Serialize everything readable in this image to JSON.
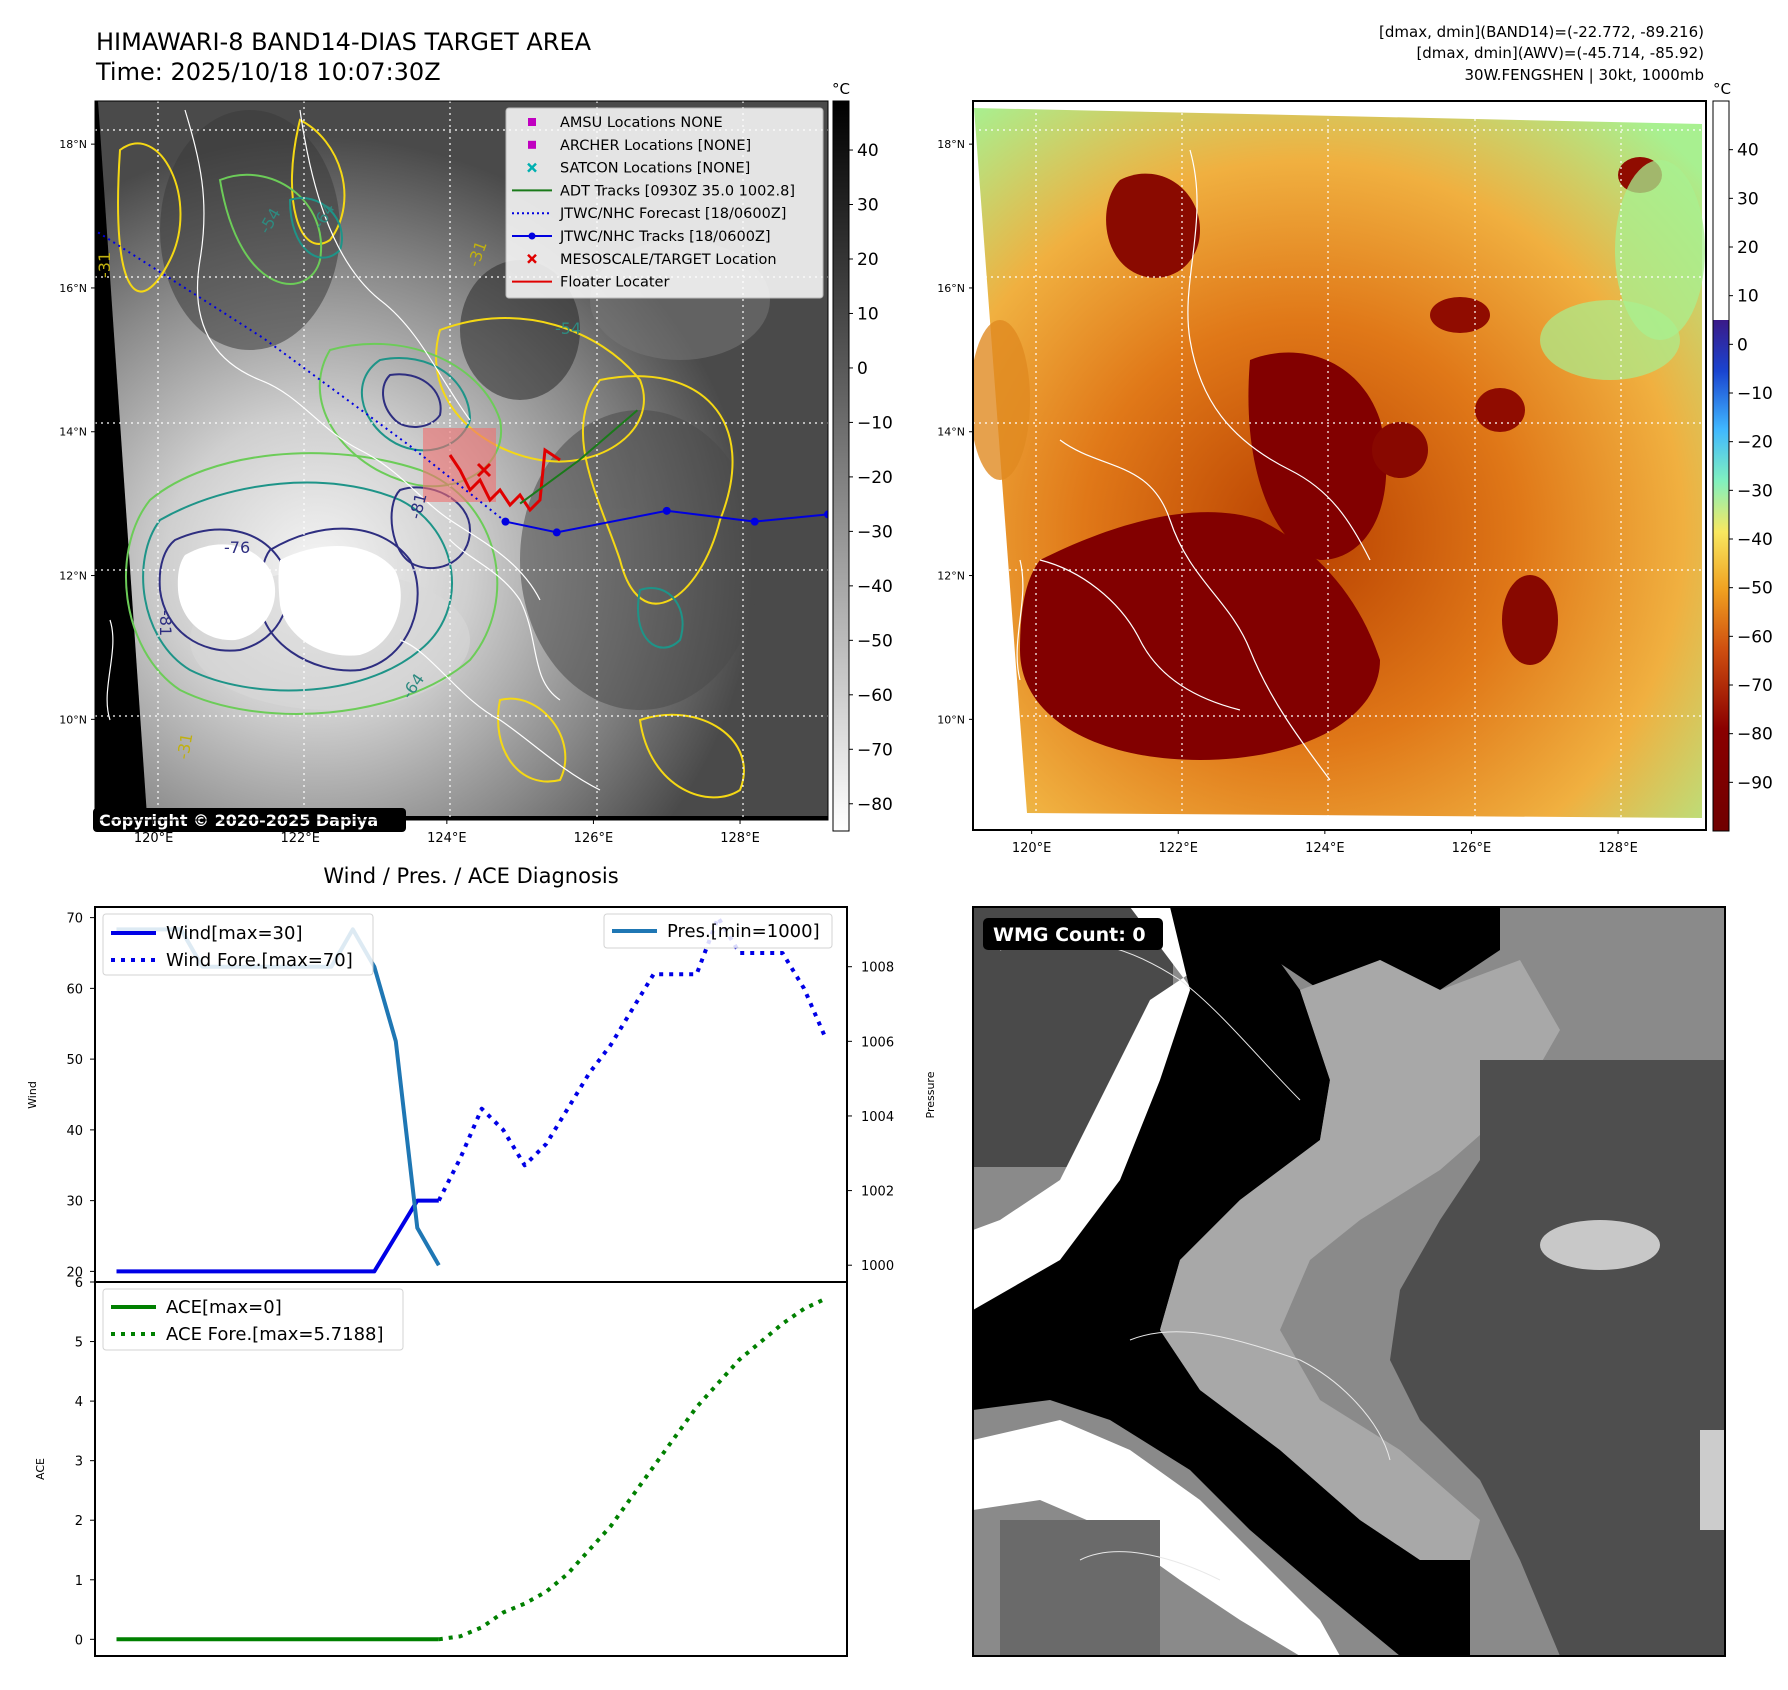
{
  "header": {
    "title_line1": "HIMAWARI-8 BAND14-DIAS TARGET AREA",
    "title_line2": "Time: 2025/10/18 10:07:30Z",
    "info_line1": "[dmax, dmin](BAND14)=(-22.772, -89.216)",
    "info_line2": "[dmax, dmin](AWV)=(-45.714, -85.92)",
    "info_line3": "30W.FENGSHEN | 30kt, 1000mb"
  },
  "map_panel": {
    "lat_labels": [
      "18°N",
      "16°N",
      "14°N",
      "12°N",
      "10°N"
    ],
    "lon_labels": [
      "120°E",
      "122°E",
      "124°E",
      "126°E",
      "128°E"
    ],
    "lat_values": [
      18,
      16,
      14,
      12,
      10
    ],
    "lon_values": [
      120,
      122,
      124,
      126,
      128
    ],
    "extent": {
      "lon_min": 119.2,
      "lon_max": 129.2,
      "lat_min": 8.6,
      "lat_max": 18.6
    },
    "contour_labels": [
      "-54",
      "-64",
      "-31",
      "-31",
      "-54",
      "-76",
      "-81",
      "-81",
      "-64",
      "-31"
    ],
    "copyright": "Copyright © 2020-2025 Dapiya",
    "legend": [
      {
        "label": "AMSU Locations NONE",
        "color": "#c000c0",
        "kind": "square"
      },
      {
        "label": "ARCHER Locations [NONE]",
        "color": "#c000c0",
        "kind": "square"
      },
      {
        "label": "SATCON Locations [NONE]",
        "color": "#00b0b0",
        "kind": "x"
      },
      {
        "label": "ADT Tracks [0930Z 35.0 1002.8]",
        "color": "#1a7a1a",
        "kind": "line"
      },
      {
        "label": "JTWC/NHC Forecast [18/0600Z]",
        "color": "#0000e0",
        "kind": "dotted"
      },
      {
        "label": "JTWC/NHC Tracks [18/0600Z]",
        "color": "#0000e0",
        "kind": "line-dot"
      },
      {
        "label": "MESOSCALE/TARGET Location",
        "color": "#e00000",
        "kind": "x"
      },
      {
        "label": "Floater Locater",
        "color": "#e00000",
        "kind": "line"
      }
    ],
    "jtwc_track": [
      [
        129.2,
        12.85
      ],
      [
        128.2,
        12.75
      ],
      [
        127.0,
        12.9
      ],
      [
        125.5,
        12.6
      ],
      [
        124.8,
        12.75
      ]
    ],
    "jtwc_forecast": [
      [
        124.8,
        12.75
      ],
      [
        123.5,
        13.8
      ],
      [
        121.5,
        15.3
      ],
      [
        119.2,
        16.8
      ]
    ],
    "adt_track": [
      [
        126.6,
        14.3
      ],
      [
        125.8,
        13.6
      ],
      [
        125.0,
        13.0
      ]
    ],
    "colorbar_unit": "°C",
    "colorbar_ticks": [
      "40",
      "30",
      "20",
      "10",
      "0",
      "−10",
      "−20",
      "−30",
      "−40",
      "−50",
      "−60",
      "−70",
      "−80"
    ],
    "colorbar_values": [
      40,
      30,
      20,
      10,
      0,
      -10,
      -20,
      -30,
      -40,
      -50,
      -60,
      -70,
      -80
    ],
    "colorbar_range": [
      -85,
      49
    ]
  },
  "awv_panel": {
    "colorbar_unit": "°C",
    "colorbar_ticks": [
      "40",
      "30",
      "20",
      "10",
      "0",
      "−10",
      "−20",
      "−30",
      "−40",
      "−50",
      "−60",
      "−70",
      "−80",
      "−90"
    ],
    "colorbar_values": [
      40,
      30,
      20,
      10,
      0,
      -10,
      -20,
      -30,
      -40,
      -50,
      -60,
      -70,
      -80,
      -90
    ],
    "colorbar_range": [
      -100,
      50
    ]
  },
  "wmg_panel": {
    "label": "WMG Count: 0"
  },
  "diagnosis": {
    "title": "Wind / Pres. / ACE Diagnosis",
    "wind_ylabel": "Wind",
    "pres_ylabel": "Pressure",
    "ace_ylabel": "ACE"
  },
  "chart_data": [
    {
      "type": "line",
      "title": "Wind / Pres. / ACE Diagnosis",
      "ylabel": "Wind",
      "ylim": [
        18.5,
        71.5
      ],
      "yticks": [
        20,
        30,
        40,
        50,
        60,
        70
      ],
      "y2label": "Pressure",
      "y2lim": [
        999.55,
        1009.6
      ],
      "y2ticks": [
        1000,
        1002,
        1004,
        1006,
        1008
      ],
      "xlim": [
        0,
        35
      ],
      "legend_left": [
        "Wind[max=30]",
        "Wind Fore.[max=70]"
      ],
      "legend_right": [
        "Pres.[min=1000]"
      ],
      "series": [
        {
          "name": "Wind[max=30]",
          "axis": "y",
          "style": "solid",
          "color": "#0000e6",
          "x": [
            1,
            2,
            3,
            4,
            5,
            6,
            7,
            8,
            9,
            10,
            11,
            12,
            13,
            14,
            15,
            16
          ],
          "values": [
            20,
            20,
            20,
            20,
            20,
            20,
            20,
            20,
            20,
            20,
            20,
            20,
            20,
            25,
            30,
            30
          ]
        },
        {
          "name": "Wind Fore.[max=70]",
          "axis": "y",
          "style": "dotted",
          "color": "#0000e6",
          "x": [
            16,
            17,
            18,
            19,
            20,
            21,
            22,
            23,
            24,
            25,
            26,
            27,
            28,
            29,
            30,
            31,
            32,
            33,
            34
          ],
          "values": [
            30,
            36,
            43,
            40,
            35,
            38,
            43,
            48,
            52,
            57,
            62,
            62,
            62,
            70,
            65,
            65,
            65,
            60,
            53
          ]
        },
        {
          "name": "Pres.[min=1000]",
          "axis": "y2",
          "style": "solid",
          "color": "#1f77b4",
          "x": [
            1,
            2,
            3,
            4,
            5,
            6,
            7,
            8,
            9,
            10,
            11,
            12,
            13,
            14,
            15,
            16
          ],
          "values": [
            1009,
            1009,
            1009,
            1009,
            1008,
            1008,
            1008,
            1008,
            1008,
            1008,
            1008,
            1009,
            1008,
            1006,
            1001,
            1000
          ]
        }
      ]
    },
    {
      "type": "line",
      "ylabel": "ACE",
      "ylim": [
        -0.28,
        6.0
      ],
      "yticks": [
        0,
        1,
        2,
        3,
        4,
        5,
        6
      ],
      "xlim": [
        0,
        35
      ],
      "legend": [
        "ACE[max=0]",
        "ACE Fore.[max=5.7188]"
      ],
      "series": [
        {
          "name": "ACE[max=0]",
          "style": "solid",
          "color": "#008000",
          "x": [
            1,
            16
          ],
          "values": [
            0,
            0
          ]
        },
        {
          "name": "ACE Fore.[max=5.7188]",
          "style": "dotted",
          "color": "#008000",
          "x": [
            16,
            17,
            18,
            19,
            20,
            21,
            22,
            23,
            24,
            25,
            26,
            27,
            28,
            29,
            30,
            31,
            32,
            33,
            34
          ],
          "values": [
            0,
            0.05,
            0.2,
            0.45,
            0.6,
            0.8,
            1.1,
            1.5,
            1.9,
            2.4,
            2.9,
            3.4,
            3.9,
            4.3,
            4.7,
            5.0,
            5.3,
            5.55,
            5.72
          ]
        }
      ]
    }
  ]
}
